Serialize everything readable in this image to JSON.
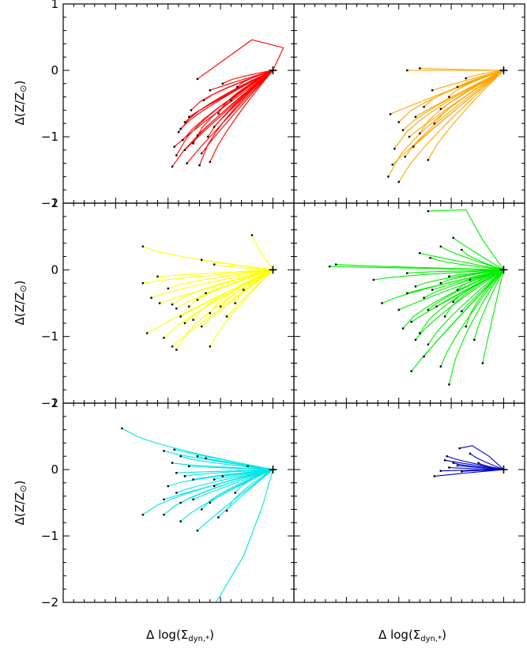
{
  "figure": {
    "ylabel_main": "Δ(Z/Z",
    "ylabel_sub": "⊙",
    "ylabel_close": ")",
    "xlabel_main": "Δ log(Σ",
    "xlabel_sub": "dyn,*",
    "xlabel_close": ")"
  },
  "chart_data": [
    {
      "type": "line",
      "panel": "row1-left",
      "color": "#ff0000",
      "ylim": [
        -2.0,
        1.0
      ],
      "yticks": [
        "1",
        "0",
        "−1",
        "−2"
      ],
      "grid": false,
      "anchor": [
        0,
        0
      ],
      "series": [
        {
          "start": [
            -0.36,
            -0.13
          ],
          "via": [
            [
              -0.1,
              0.46
            ],
            [
              0.05,
              0.34
            ]
          ]
        },
        {
          "start": [
            -0.42,
            -0.78
          ],
          "via": []
        },
        {
          "start": [
            -0.4,
            -0.7
          ],
          "via": []
        },
        {
          "start": [
            -0.45,
            -0.93
          ],
          "via": []
        },
        {
          "start": [
            -0.43,
            -1.05
          ],
          "via": []
        },
        {
          "start": [
            -0.47,
            -1.15
          ],
          "via": []
        },
        {
          "start": [
            -0.46,
            -1.28
          ],
          "via": []
        },
        {
          "start": [
            -0.48,
            -1.45
          ],
          "via": []
        },
        {
          "start": [
            -0.41,
            -1.4
          ],
          "via": []
        },
        {
          "start": [
            -0.35,
            -1.43
          ],
          "via": []
        },
        {
          "start": [
            -0.3,
            -1.38
          ],
          "via": []
        },
        {
          "start": [
            -0.34,
            -1.25
          ],
          "via": []
        },
        {
          "start": [
            -0.38,
            -1.1
          ],
          "via": []
        },
        {
          "start": [
            -0.31,
            -1.0
          ],
          "via": []
        },
        {
          "start": [
            -0.28,
            -0.85
          ],
          "via": []
        },
        {
          "start": [
            -0.39,
            -0.6
          ],
          "via": []
        },
        {
          "start": [
            -0.33,
            -0.45
          ],
          "via": []
        },
        {
          "start": [
            -0.3,
            -0.3
          ],
          "via": []
        },
        {
          "start": [
            -0.24,
            -0.2
          ],
          "via": []
        },
        {
          "start": [
            -0.44,
            -0.88
          ],
          "via": []
        },
        {
          "start": [
            -0.36,
            -0.98
          ],
          "via": []
        },
        {
          "start": [
            -0.26,
            -0.65
          ],
          "via": []
        },
        {
          "start": [
            -0.2,
            -0.45
          ],
          "via": []
        },
        {
          "start": [
            -0.42,
            -1.2
          ],
          "via": []
        },
        {
          "start": [
            -0.17,
            -0.25
          ],
          "via": []
        }
      ]
    },
    {
      "type": "line",
      "panel": "row1-right",
      "color": "#ffa500",
      "ylim": [
        -2.0,
        1.0
      ],
      "yticks": [],
      "grid": false,
      "anchor": [
        0,
        0
      ],
      "series": [
        {
          "start": [
            -0.46,
            0.0
          ],
          "via": []
        },
        {
          "start": [
            -0.4,
            0.03
          ],
          "via": []
        },
        {
          "start": [
            -0.54,
            -0.66
          ],
          "via": []
        },
        {
          "start": [
            -0.5,
            -0.78
          ],
          "via": []
        },
        {
          "start": [
            -0.48,
            -0.9
          ],
          "via": []
        },
        {
          "start": [
            -0.45,
            -1.0
          ],
          "via": []
        },
        {
          "start": [
            -0.52,
            -1.18
          ],
          "via": []
        },
        {
          "start": [
            -0.47,
            -1.3
          ],
          "via": []
        },
        {
          "start": [
            -0.53,
            -1.42
          ],
          "via": []
        },
        {
          "start": [
            -0.55,
            -1.6
          ],
          "via": []
        },
        {
          "start": [
            -0.5,
            -1.68
          ],
          "via": []
        },
        {
          "start": [
            -0.42,
            -0.7
          ],
          "via": []
        },
        {
          "start": [
            -0.38,
            -0.55
          ],
          "via": []
        },
        {
          "start": [
            -0.36,
            -1.35
          ],
          "via": []
        },
        {
          "start": [
            -0.43,
            -1.15
          ],
          "via": []
        },
        {
          "start": [
            -0.4,
            -0.95
          ],
          "via": []
        },
        {
          "start": [
            -0.33,
            -0.8
          ],
          "via": []
        },
        {
          "start": [
            -0.3,
            -0.58
          ],
          "via": []
        },
        {
          "start": [
            -0.26,
            -0.4
          ],
          "via": []
        },
        {
          "start": [
            -0.22,
            -0.25
          ],
          "via": []
        },
        {
          "start": [
            -0.34,
            -0.3
          ],
          "via": []
        },
        {
          "start": [
            -0.18,
            -0.12
          ],
          "via": []
        }
      ]
    },
    {
      "type": "line",
      "panel": "row2-left",
      "color": "#ffff00",
      "ylim": [
        -2.0,
        1.0
      ],
      "yticks": [
        "1",
        "0",
        "−1",
        "−2"
      ],
      "grid": false,
      "anchor": [
        0,
        0
      ],
      "series": [
        {
          "start": [
            -0.62,
            0.35
          ],
          "via": []
        },
        {
          "start": [
            -0.1,
            0.52
          ],
          "via": []
        },
        {
          "start": [
            -0.34,
            0.15
          ],
          "via": []
        },
        {
          "start": [
            -0.28,
            0.08
          ],
          "via": []
        },
        {
          "start": [
            -0.62,
            -0.2
          ],
          "via": []
        },
        {
          "start": [
            -0.55,
            -0.1
          ],
          "via": []
        },
        {
          "start": [
            -0.5,
            -0.28
          ],
          "via": []
        },
        {
          "start": [
            -0.58,
            -0.42
          ],
          "via": []
        },
        {
          "start": [
            -0.54,
            -0.5
          ],
          "via": []
        },
        {
          "start": [
            -0.48,
            -0.52
          ],
          "via": []
        },
        {
          "start": [
            -0.46,
            -0.58
          ],
          "via": []
        },
        {
          "start": [
            -0.44,
            -0.7
          ],
          "via": []
        },
        {
          "start": [
            -0.4,
            -0.55
          ],
          "via": []
        },
        {
          "start": [
            -0.36,
            -0.45
          ],
          "via": []
        },
        {
          "start": [
            -0.32,
            -0.35
          ],
          "via": []
        },
        {
          "start": [
            -0.38,
            -0.75
          ],
          "via": []
        },
        {
          "start": [
            -0.42,
            -0.8
          ],
          "via": []
        },
        {
          "start": [
            -0.34,
            -0.85
          ],
          "via": []
        },
        {
          "start": [
            -0.3,
            -0.65
          ],
          "via": []
        },
        {
          "start": [
            -0.25,
            -0.55
          ],
          "via": []
        },
        {
          "start": [
            -0.22,
            -0.7
          ],
          "via": []
        },
        {
          "start": [
            -0.18,
            -0.5
          ],
          "via": []
        },
        {
          "start": [
            -0.52,
            -1.02
          ],
          "via": []
        },
        {
          "start": [
            -0.48,
            -1.15
          ],
          "via": []
        },
        {
          "start": [
            -0.46,
            -1.2
          ],
          "via": []
        },
        {
          "start": [
            -0.3,
            -1.15
          ],
          "via": []
        },
        {
          "start": [
            -0.6,
            -0.95
          ],
          "via": []
        },
        {
          "start": [
            -0.14,
            -0.3
          ],
          "via": []
        }
      ]
    },
    {
      "type": "line",
      "panel": "row2-right",
      "color": "#00ee00",
      "ylim": [
        -2.0,
        1.0
      ],
      "yticks": [],
      "grid": false,
      "anchor": [
        0,
        0
      ],
      "series": [
        {
          "start": [
            -0.36,
            0.88
          ],
          "via": [
            [
              -0.18,
              0.9
            ],
            [
              -0.1,
              0.45
            ]
          ]
        },
        {
          "start": [
            -0.8,
            0.08
          ],
          "via": []
        },
        {
          "start": [
            -0.83,
            0.05
          ],
          "via": []
        },
        {
          "start": [
            -0.62,
            -0.15
          ],
          "via": []
        },
        {
          "start": [
            -0.58,
            -0.5
          ],
          "via": []
        },
        {
          "start": [
            -0.44,
            -0.78
          ],
          "via": []
        },
        {
          "start": [
            -0.4,
            -0.95
          ],
          "via": []
        },
        {
          "start": [
            -0.36,
            -1.12
          ],
          "via": []
        },
        {
          "start": [
            -0.44,
            -1.52
          ],
          "via": []
        },
        {
          "start": [
            -0.26,
            -1.72
          ],
          "via": []
        },
        {
          "start": [
            -0.3,
            -1.45
          ],
          "via": []
        },
        {
          "start": [
            -0.46,
            -0.35
          ],
          "via": []
        },
        {
          "start": [
            -0.42,
            -0.25
          ],
          "via": []
        },
        {
          "start": [
            -0.38,
            -0.42
          ],
          "via": []
        },
        {
          "start": [
            -0.34,
            -0.3
          ],
          "via": []
        },
        {
          "start": [
            -0.3,
            -0.2
          ],
          "via": []
        },
        {
          "start": [
            -0.26,
            -0.1
          ],
          "via": []
        },
        {
          "start": [
            -0.4,
            0.25
          ],
          "via": []
        },
        {
          "start": [
            -0.35,
            0.18
          ],
          "via": []
        },
        {
          "start": [
            -0.3,
            0.35
          ],
          "via": []
        },
        {
          "start": [
            -0.24,
            0.48
          ],
          "via": []
        },
        {
          "start": [
            -0.2,
            0.3
          ],
          "via": []
        },
        {
          "start": [
            -0.36,
            -0.6
          ],
          "via": []
        },
        {
          "start": [
            -0.32,
            -0.55
          ],
          "via": []
        },
        {
          "start": [
            -0.28,
            -0.7
          ],
          "via": []
        },
        {
          "start": [
            -0.24,
            -0.48
          ],
          "via": []
        },
        {
          "start": [
            -0.2,
            -0.62
          ],
          "via": []
        },
        {
          "start": [
            -0.18,
            -0.85
          ],
          "via": []
        },
        {
          "start": [
            -0.14,
            -1.05
          ],
          "via": []
        },
        {
          "start": [
            -0.5,
            -0.6
          ],
          "via": []
        },
        {
          "start": [
            -0.48,
            -0.88
          ],
          "via": []
        },
        {
          "start": [
            -0.42,
            -1.05
          ],
          "via": []
        },
        {
          "start": [
            -0.38,
            -1.3
          ],
          "via": []
        },
        {
          "start": [
            -0.22,
            -0.3
          ],
          "via": []
        },
        {
          "start": [
            -0.16,
            -0.15
          ],
          "via": []
        },
        {
          "start": [
            -0.1,
            -1.4
          ],
          "via": []
        },
        {
          "start": [
            -0.46,
            -0.05
          ],
          "via": []
        }
      ]
    },
    {
      "type": "line",
      "panel": "row3-left",
      "color": "#00e5e5",
      "ylim": [
        -2.0,
        1.0
      ],
      "yticks": [
        "1",
        "0",
        "−1",
        "−2"
      ],
      "grid": false,
      "anchor": [
        0,
        0
      ],
      "series": [
        {
          "start": [
            -0.72,
            0.62
          ],
          "via": []
        },
        {
          "start": [
            -0.52,
            0.28
          ],
          "via": []
        },
        {
          "start": [
            -0.47,
            0.3
          ],
          "via": []
        },
        {
          "start": [
            -0.44,
            0.2
          ],
          "via": []
        },
        {
          "start": [
            -0.36,
            0.2
          ],
          "via": []
        },
        {
          "start": [
            -0.32,
            0.17
          ],
          "via": []
        },
        {
          "start": [
            -0.48,
            0.1
          ],
          "via": []
        },
        {
          "start": [
            -0.4,
            0.05
          ],
          "via": []
        },
        {
          "start": [
            -0.46,
            -0.05
          ],
          "via": []
        },
        {
          "start": [
            -0.42,
            -0.1
          ],
          "via": []
        },
        {
          "start": [
            -0.38,
            -0.15
          ],
          "via": []
        },
        {
          "start": [
            -0.28,
            -0.15
          ],
          "via": []
        },
        {
          "start": [
            -0.5,
            -0.25
          ],
          "via": []
        },
        {
          "start": [
            -0.46,
            -0.35
          ],
          "via": []
        },
        {
          "start": [
            -0.52,
            -0.45
          ],
          "via": []
        },
        {
          "start": [
            -0.62,
            -0.68
          ],
          "via": []
        },
        {
          "start": [
            -0.44,
            -0.5
          ],
          "via": []
        },
        {
          "start": [
            -0.38,
            -0.45
          ],
          "via": []
        },
        {
          "start": [
            -0.34,
            -0.6
          ],
          "via": []
        },
        {
          "start": [
            -0.3,
            -0.5
          ],
          "via": []
        },
        {
          "start": [
            -0.26,
            -0.72
          ],
          "via": []
        },
        {
          "start": [
            -0.22,
            -0.62
          ],
          "via": []
        },
        {
          "start": [
            -0.44,
            -0.78
          ],
          "via": []
        },
        {
          "start": [
            -0.36,
            -0.92
          ],
          "via": []
        },
        {
          "start": [
            -0.52,
            -0.68
          ],
          "via": []
        },
        {
          "start": [
            -0.28,
            -0.25
          ],
          "via": []
        },
        {
          "start": [
            -0.24,
            -0.1
          ],
          "via": []
        },
        {
          "start": [
            -0.18,
            -0.35
          ],
          "via": []
        },
        {
          "start": [
            -0.12,
            0.05
          ],
          "via": []
        }
      ],
      "extra_lines": [
        {
          "points": [
            [
              -0.28,
              -2.05
            ],
            [
              -0.14,
              -1.3
            ],
            [
              -0.05,
              -0.55
            ],
            [
              0.0,
              0.0
            ]
          ]
        }
      ]
    },
    {
      "type": "line",
      "panel": "row3-right",
      "color": "#0000cc",
      "ylim": [
        -2.0,
        1.0
      ],
      "yticks": [],
      "grid": false,
      "anchor": [
        0,
        0
      ],
      "series": [
        {
          "start": [
            -0.21,
            0.32
          ],
          "via": [
            [
              -0.15,
              0.36
            ],
            [
              -0.07,
              0.2
            ]
          ]
        },
        {
          "start": [
            -0.27,
            0.2
          ],
          "via": []
        },
        {
          "start": [
            -0.28,
            0.14
          ],
          "via": []
        },
        {
          "start": [
            -0.24,
            0.1
          ],
          "via": []
        },
        {
          "start": [
            -0.26,
            0.03
          ],
          "via": []
        },
        {
          "start": [
            -0.22,
            0.06
          ],
          "via": []
        },
        {
          "start": [
            -0.2,
            -0.03
          ],
          "via": []
        },
        {
          "start": [
            -0.3,
            -0.02
          ],
          "via": []
        },
        {
          "start": [
            -0.33,
            -0.1
          ],
          "via": []
        },
        {
          "start": [
            -0.12,
            0.1
          ],
          "via": []
        },
        {
          "start": [
            -0.16,
            0.24
          ],
          "via": []
        }
      ]
    }
  ]
}
